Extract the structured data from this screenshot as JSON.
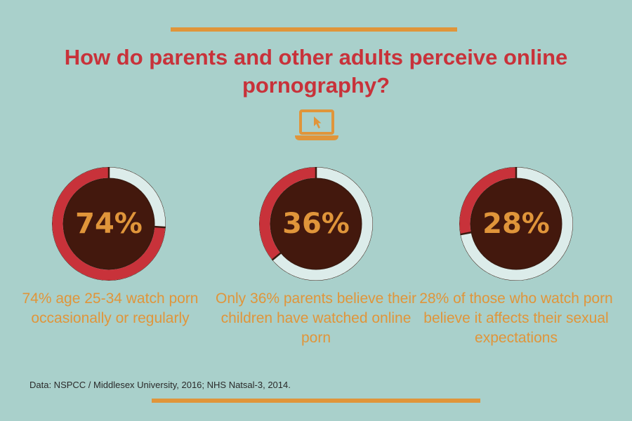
{
  "colors": {
    "background": "#a9d0cb",
    "accent_orange": "#e0953a",
    "title_red": "#c8323a",
    "ring_red": "#c8323a",
    "ring_light": "#dcecea",
    "ring_outline": "#3a1a10",
    "inner_fill": "#43180d",
    "percent_text": "#e0953a",
    "caption_text": "#e0953a",
    "source_text": "#2a2a2a"
  },
  "title": "How do parents and other adults perceive online pornography?",
  "icon": "laptop-cursor-icon",
  "source": "Data: NSPCC / Middlesex University, 2016; NHS Natsal-3, 2014.",
  "chart_data": {
    "type": "pie",
    "charts": [
      {
        "label": "74%",
        "value": 74,
        "caption": "74% age 25-34 watch porn occasionally or regularly"
      },
      {
        "label": "36%",
        "value": 36,
        "caption": "Only 36% parents believe their children have watched online porn"
      },
      {
        "label": "28%",
        "value": 28,
        "caption": "28% of those who watch porn believe it affects their sexual expectations"
      }
    ]
  }
}
